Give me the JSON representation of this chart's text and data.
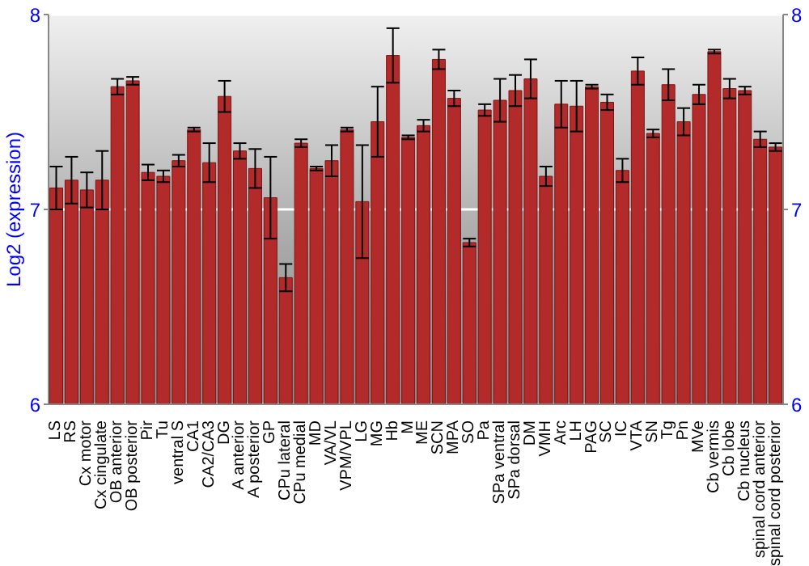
{
  "chart_data": {
    "type": "bar",
    "ylabel": "Log2 (expression)",
    "categories": [
      "LS",
      "RS",
      "Cx motor",
      "Cx cingulate",
      "OB anterior",
      "OB posterior",
      "Pir",
      "Tu",
      "ventral S",
      "CA1",
      "CA2/CA3",
      "DG",
      "A anterior",
      "A posterior",
      "GP",
      "CPu lateral",
      "CPu medial",
      "MD",
      "VA/VL",
      "VPM/VPL",
      "LG",
      "MG",
      "Hb",
      "M",
      "ME",
      "SCN",
      "MPA",
      "SO",
      "Pa",
      "SPa ventral",
      "SPa dorsal",
      "DM",
      "VMH",
      "Arc",
      "LH",
      "PAG",
      "SC",
      "IC",
      "VTA",
      "SN",
      "Tg",
      "Pn",
      "MVe",
      "Cb vermis",
      "Cb lobe",
      "Cb nucleus",
      "spinal cord anterior",
      "spinal cord posterior"
    ],
    "values": [
      7.11,
      7.15,
      7.1,
      7.15,
      7.63,
      7.66,
      7.19,
      7.17,
      7.25,
      7.41,
      7.24,
      7.58,
      7.3,
      7.21,
      7.06,
      6.65,
      7.34,
      7.21,
      7.25,
      7.41,
      7.04,
      7.45,
      7.79,
      7.37,
      7.43,
      7.77,
      7.57,
      6.83,
      7.51,
      7.56,
      7.61,
      7.67,
      7.17,
      7.54,
      7.53,
      7.63,
      7.55,
      7.2,
      7.71,
      7.39,
      7.64,
      7.45,
      7.59,
      7.81,
      7.62,
      7.61,
      7.36,
      7.32
    ],
    "errors": [
      0.11,
      0.12,
      0.09,
      0.15,
      0.04,
      0.02,
      0.04,
      0.03,
      0.03,
      0.01,
      0.1,
      0.08,
      0.04,
      0.1,
      0.21,
      0.07,
      0.02,
      0.01,
      0.08,
      0.01,
      0.29,
      0.18,
      0.14,
      0.01,
      0.03,
      0.05,
      0.04,
      0.02,
      0.03,
      0.11,
      0.08,
      0.1,
      0.05,
      0.12,
      0.13,
      0.01,
      0.04,
      0.06,
      0.07,
      0.02,
      0.08,
      0.07,
      0.05,
      0.01,
      0.05,
      0.02,
      0.04,
      0.02
    ],
    "color": "#b22a2a",
    "ylim": [
      6,
      8
    ],
    "yticks": [
      6,
      7,
      8
    ],
    "y2lim": [
      6,
      8
    ],
    "y2ticks": [
      6,
      7,
      8
    ],
    "grid": "y"
  }
}
